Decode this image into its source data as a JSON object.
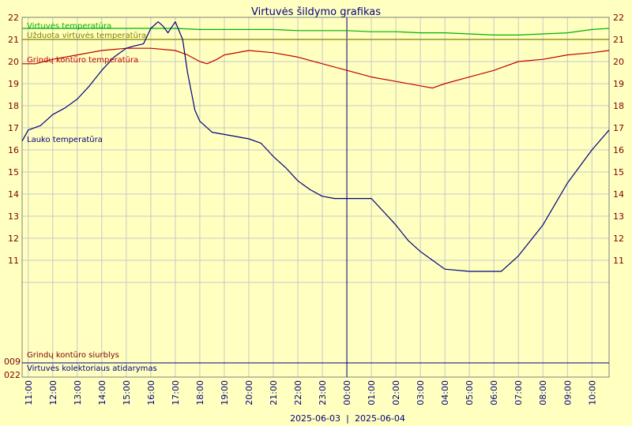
{
  "chart_data": {
    "type": "line",
    "title": "Virtuvės šildymo grafikas",
    "y_range": [
      10,
      22
    ],
    "y_ticks": [
      11,
      12,
      13,
      14,
      15,
      16,
      17,
      18,
      19,
      20,
      21,
      22
    ],
    "x_ticks": [
      "11:00",
      "12:00",
      "13:00",
      "14:00",
      "15:00",
      "16:00",
      "17:00",
      "18:00",
      "19:00",
      "20:00",
      "21:00",
      "22:00",
      "23:00",
      "00:00",
      "01:00",
      "02:00",
      "03:00",
      "04:00",
      "05:00",
      "06:00",
      "07:00",
      "08:00",
      "09:00",
      "10:00"
    ],
    "x_range_hours": [
      10.75,
      34.7
    ],
    "dates": [
      "2025-06-03",
      "2025-06-04"
    ],
    "date_separator": "|",
    "midnight_hour": 24,
    "grid": true,
    "series": [
      {
        "name": "Virtuvės temperatūra",
        "color": "#00b000",
        "x": [
          10.75,
          12,
          13,
          14,
          15,
          15.8,
          16,
          16.5,
          17,
          18,
          19,
          20,
          21,
          22,
          23,
          24,
          25,
          26,
          27,
          28,
          29,
          30,
          31,
          32,
          33,
          34,
          34.7
        ],
        "y": [
          21.5,
          21.5,
          21.5,
          21.5,
          21.5,
          21.5,
          21.5,
          21.5,
          21.5,
          21.45,
          21.45,
          21.45,
          21.45,
          21.4,
          21.4,
          21.4,
          21.35,
          21.35,
          21.3,
          21.3,
          21.25,
          21.2,
          21.2,
          21.25,
          21.3,
          21.45,
          21.5
        ]
      },
      {
        "name": "Užduota virtuvės temperatūra",
        "color": "#808000",
        "x": [
          10.75,
          34.7
        ],
        "y": [
          21,
          21
        ]
      },
      {
        "name": "Grindų kontūro temperatūra",
        "color": "#c00000",
        "x": [
          10.75,
          11.3,
          12,
          13,
          14,
          15,
          16,
          17,
          17.5,
          18,
          18.3,
          18.7,
          19,
          20,
          21,
          22,
          23,
          24,
          25,
          26,
          27,
          27.5,
          28,
          29,
          30,
          31,
          32,
          33,
          34,
          34.7
        ],
        "y": [
          19.9,
          19.9,
          20.1,
          20.3,
          20.5,
          20.6,
          20.6,
          20.5,
          20.3,
          20.0,
          19.9,
          20.1,
          20.3,
          20.5,
          20.4,
          20.2,
          19.9,
          19.6,
          19.3,
          19.1,
          18.9,
          18.8,
          19.0,
          19.3,
          19.6,
          20.0,
          20.1,
          20.3,
          20.4,
          20.5
        ]
      },
      {
        "name": "Lauko temperatūra",
        "color": "#000080",
        "x": [
          10.75,
          11,
          11.5,
          12,
          12.5,
          13,
          13.5,
          14,
          14.5,
          15,
          15.3,
          15.7,
          16,
          16.3,
          16.5,
          16.7,
          17,
          17.3,
          17.5,
          17.8,
          18,
          18.5,
          19,
          20,
          20.5,
          21,
          21.5,
          22,
          22.5,
          23,
          23.5,
          24,
          25,
          25.5,
          26,
          26.5,
          27,
          27.5,
          28,
          29,
          30,
          30.3,
          31,
          32,
          33,
          34,
          34.7
        ],
        "y": [
          16.4,
          16.9,
          17.1,
          17.6,
          17.9,
          18.3,
          18.9,
          19.6,
          20.2,
          20.6,
          20.7,
          20.8,
          21.5,
          21.8,
          21.6,
          21.3,
          21.8,
          21.0,
          19.5,
          17.8,
          17.3,
          16.8,
          16.7,
          16.5,
          16.3,
          15.7,
          15.2,
          14.6,
          14.2,
          13.9,
          13.8,
          13.8,
          13.8,
          13.2,
          12.6,
          11.9,
          11.4,
          11.0,
          10.6,
          10.5,
          10.5,
          10.5,
          11.2,
          12.6,
          14.5,
          16.0,
          16.9
        ]
      }
    ],
    "bottom_tracks": [
      {
        "name": "Grindų kontūro siurblys",
        "value_label": "009",
        "color": "#800000",
        "state": "off"
      },
      {
        "name": "Virtuvės kolektoriaus atidarymas",
        "value_label": "022",
        "color": "#000080",
        "state": "on"
      }
    ],
    "label_colors": {
      "axis_text": "#800000",
      "x_text": "#000080",
      "grid": "#c8c8c8",
      "background": "#ffffc0",
      "midnight_line": "#000080"
    }
  }
}
